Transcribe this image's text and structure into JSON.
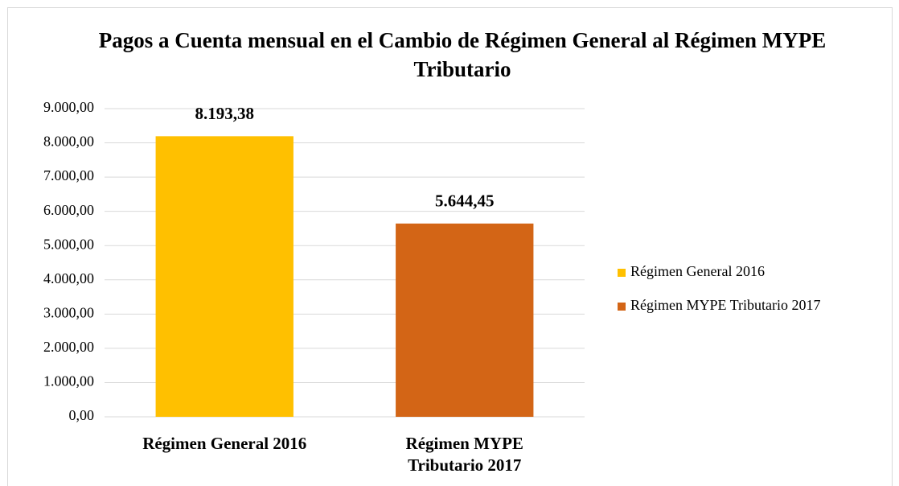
{
  "chart_data": {
    "type": "bar",
    "title": "Pagos a Cuenta mensual en el Cambio de Régimen General al Régimen MYPE Tributario",
    "categories": [
      "Régimen General 2016",
      "Régimen MYPE Tributario 2017"
    ],
    "values": [
      8193.38,
      5644.45
    ],
    "value_labels": [
      "8.193,38",
      "5.644,45"
    ],
    "colors": [
      "#ffc000",
      "#d36516"
    ],
    "ylim": [
      0,
      9000
    ],
    "yticks": [
      {
        "value": 0,
        "label": "0,00"
      },
      {
        "value": 1000,
        "label": "1.000,00"
      },
      {
        "value": 2000,
        "label": "2.000,00"
      },
      {
        "value": 3000,
        "label": "3.000,00"
      },
      {
        "value": 4000,
        "label": "4.000,00"
      },
      {
        "value": 5000,
        "label": "5.000,00"
      },
      {
        "value": 6000,
        "label": "6.000,00"
      },
      {
        "value": 7000,
        "label": "7.000,00"
      },
      {
        "value": 8000,
        "label": "8.000,00"
      },
      {
        "value": 9000,
        "label": "9.000,00"
      }
    ],
    "grid": true,
    "legend": "right"
  }
}
